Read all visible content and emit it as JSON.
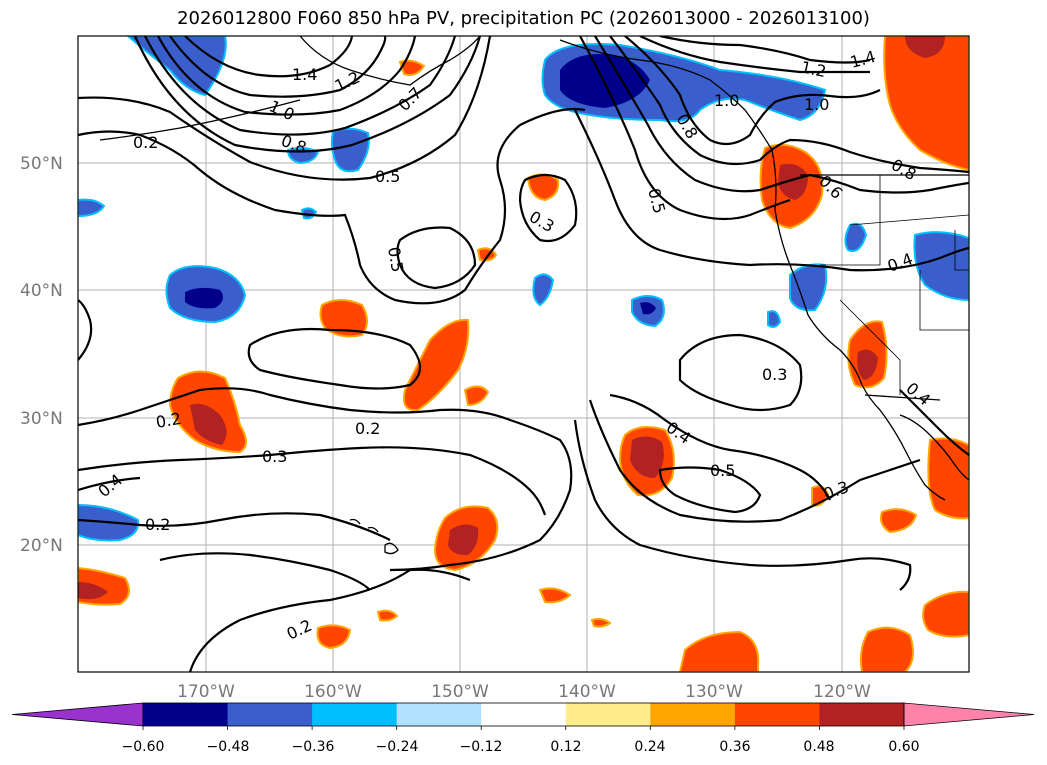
{
  "title": "2026012800 F060 850 hPa PV, precipitation PC (2026013000 - 2026013100)",
  "lat_labels": [
    "50°N",
    "40°N",
    "30°N",
    "20°N"
  ],
  "lon_labels": [
    "170°W",
    "160°W",
    "150°W",
    "140°W",
    "130°W",
    "120°W"
  ],
  "contour_labels": [
    "1.4",
    "1.2",
    "1.0",
    "0.8",
    "0.7",
    "0.2",
    "0.5",
    "0.5",
    "0.3",
    "0.5",
    "1.4",
    "1.2",
    "1.0",
    "1.0",
    "0.8",
    "0.6",
    "0.8",
    "0.4",
    "0.2",
    "0.2",
    "0.3",
    "0.3",
    "0.4",
    "0.5",
    "0.3",
    "0.4",
    "0.2",
    "0.2",
    "0.4"
  ],
  "colorbar": {
    "ticks": [
      "−0.60",
      "−0.48",
      "−0.36",
      "−0.24",
      "−0.12",
      "0.12",
      "0.24",
      "0.36",
      "0.48",
      "0.60"
    ],
    "colors": [
      "#9a32cd",
      "#00008b",
      "#3a5fcd",
      "#00bfff",
      "#b0e2ff",
      "#ffffff",
      "#ffec8b",
      "#ffa500",
      "#ff4500",
      "#b22222",
      "#ff82ab"
    ]
  },
  "chart_data": {
    "type": "map",
    "title": "2026012800 F060 850 hPa PV, precipitation PC (2026013000 - 2026013100)",
    "contour_field": "850 hPa PV",
    "contour_levels": [
      0.2,
      0.3,
      0.4,
      0.5,
      0.6,
      0.7,
      0.8,
      1.0,
      1.2,
      1.4
    ],
    "fill_field": "precipitation PC",
    "fill_levels": [
      -0.6,
      -0.48,
      -0.36,
      -0.24,
      -0.12,
      0.12,
      0.24,
      0.36,
      0.48,
      0.6
    ],
    "lat_range": [
      10,
      60
    ],
    "lon_range": [
      -180,
      -110
    ],
    "lat_ticks": [
      "50°N",
      "40°N",
      "30°N",
      "20°N"
    ],
    "lon_ticks": [
      "170°W",
      "160°W",
      "150°W",
      "140°W",
      "130°W",
      "120°W"
    ]
  }
}
